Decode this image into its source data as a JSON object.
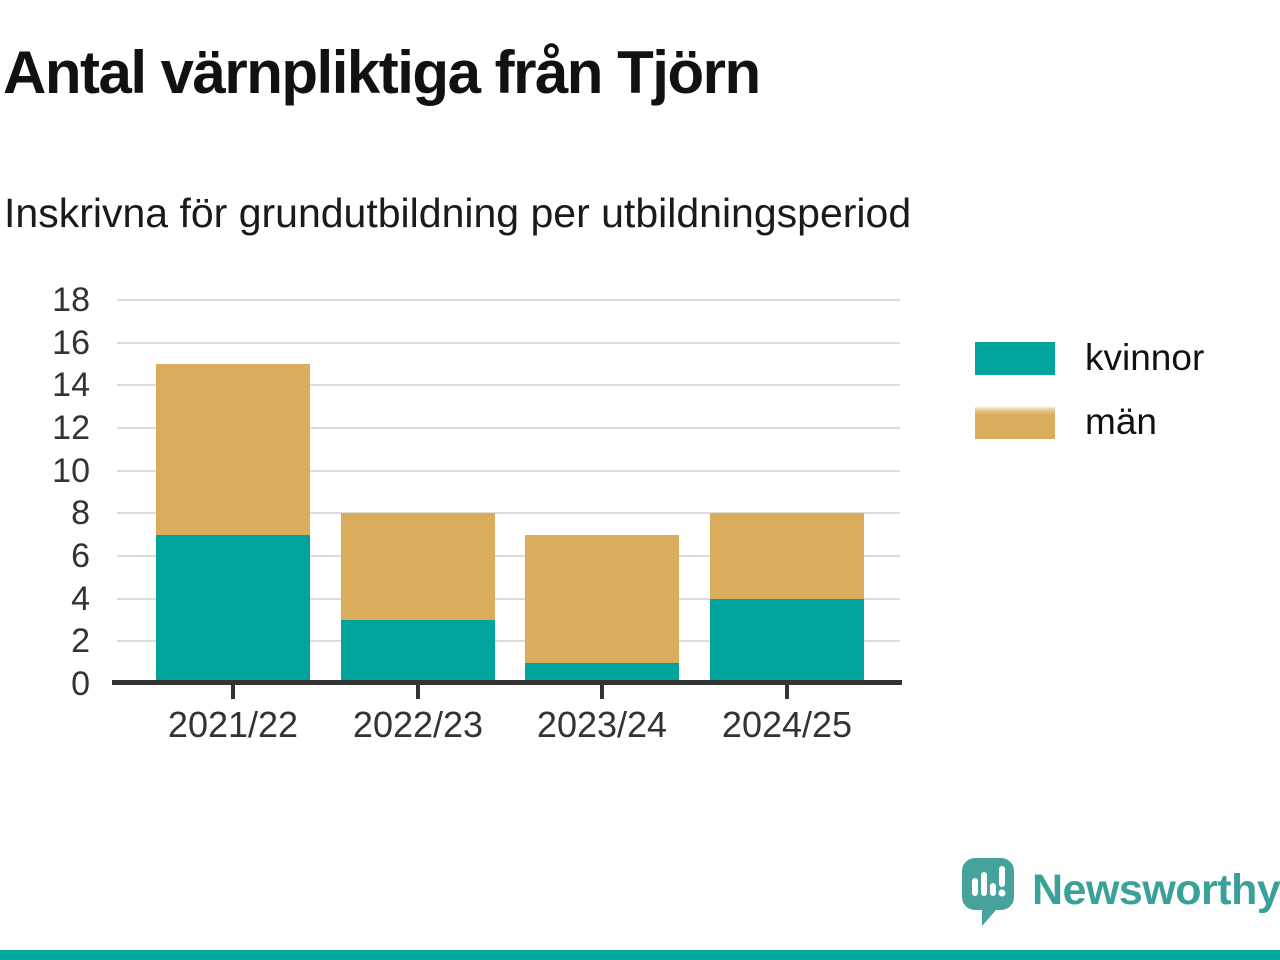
{
  "chart_data": {
    "type": "bar",
    "stacked": true,
    "title": "Antal värnpliktiga från Tjörn",
    "subtitle": "Inskrivna för grundutbildning per utbildningsperiod",
    "categories": [
      "2021/22",
      "2022/23",
      "2023/24",
      "2024/25"
    ],
    "series": [
      {
        "name": "kvinnor",
        "color": "#00a49a",
        "values": [
          7,
          3,
          1,
          4
        ]
      },
      {
        "name": "män",
        "color": "#d9ad5b",
        "values": [
          8,
          5,
          6,
          4
        ]
      }
    ],
    "totals": [
      15,
      8,
      7,
      8
    ],
    "xlabel": "",
    "ylabel": "",
    "ylim": [
      0,
      18
    ],
    "yticks": [
      0,
      2,
      4,
      6,
      8,
      10,
      12,
      14,
      16,
      18
    ],
    "grid": true,
    "legend_position": "right",
    "axis_color": "#333333",
    "gridline_color": "#dcdcdc"
  },
  "branding": {
    "logo_text": "Newsworthy",
    "logo_color": "#3aa198",
    "icon_color": "#45a39b",
    "strip_color": "#00a89e"
  }
}
